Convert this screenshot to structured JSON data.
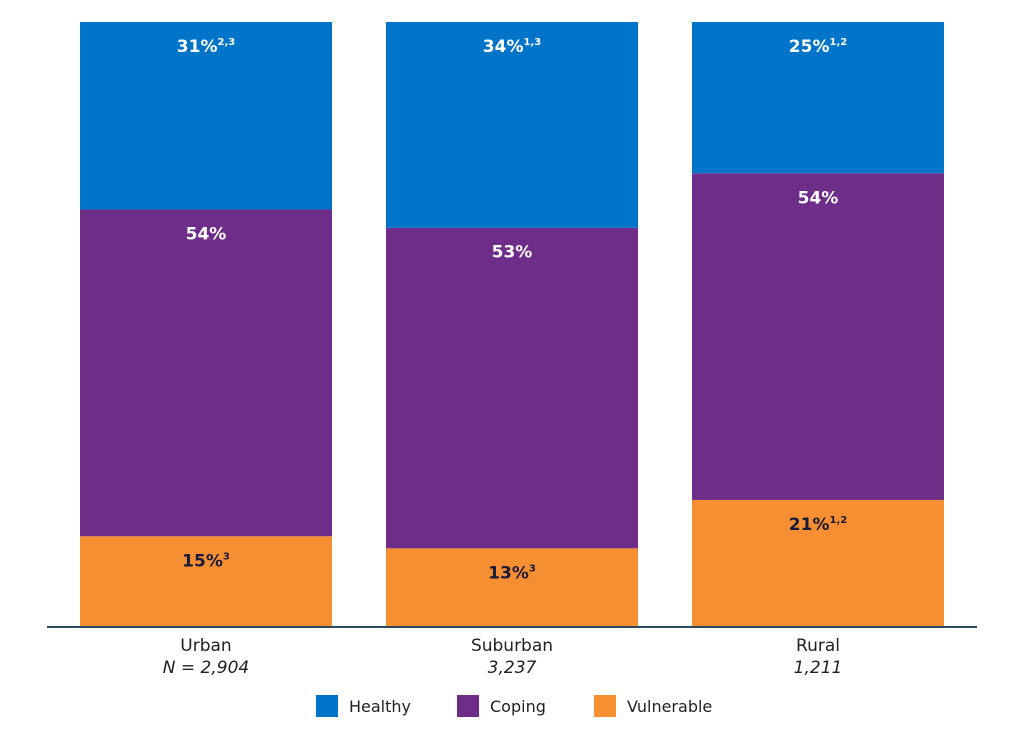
{
  "chart_data": {
    "type": "bar",
    "stacked": true,
    "normalized": true,
    "categories": [
      "Urban",
      "Suburban",
      "Rural"
    ],
    "sample_sizes": [
      "N = 2,904",
      "3,237",
      "1,211"
    ],
    "series": [
      {
        "name": "Vulnerable",
        "color": "#f58f31",
        "values": [
          15,
          13,
          21
        ],
        "labels": [
          "15%",
          "13%",
          "21%"
        ],
        "superscripts": [
          "3",
          "3",
          "1,2"
        ],
        "label_color": "#1a1a3a"
      },
      {
        "name": "Coping",
        "color": "#6f2d8a",
        "values": [
          54,
          53,
          54
        ],
        "labels": [
          "54%",
          "53%",
          "54%"
        ],
        "superscripts": [
          "",
          "",
          ""
        ],
        "label_color": "#ffffff"
      },
      {
        "name": "Healthy",
        "color": "#0074c8",
        "values": [
          31,
          34,
          25
        ],
        "labels": [
          "31%",
          "34%",
          "25%"
        ],
        "superscripts": [
          "2,3",
          "1,3",
          "1,2"
        ],
        "label_color": "#ffffff"
      }
    ],
    "legend": {
      "placement": "bottom-center",
      "order": [
        "Healthy",
        "Coping",
        "Vulnerable"
      ]
    },
    "ylim": [
      0,
      100
    ],
    "grid": false,
    "axis_color": "#2f4a5e"
  }
}
